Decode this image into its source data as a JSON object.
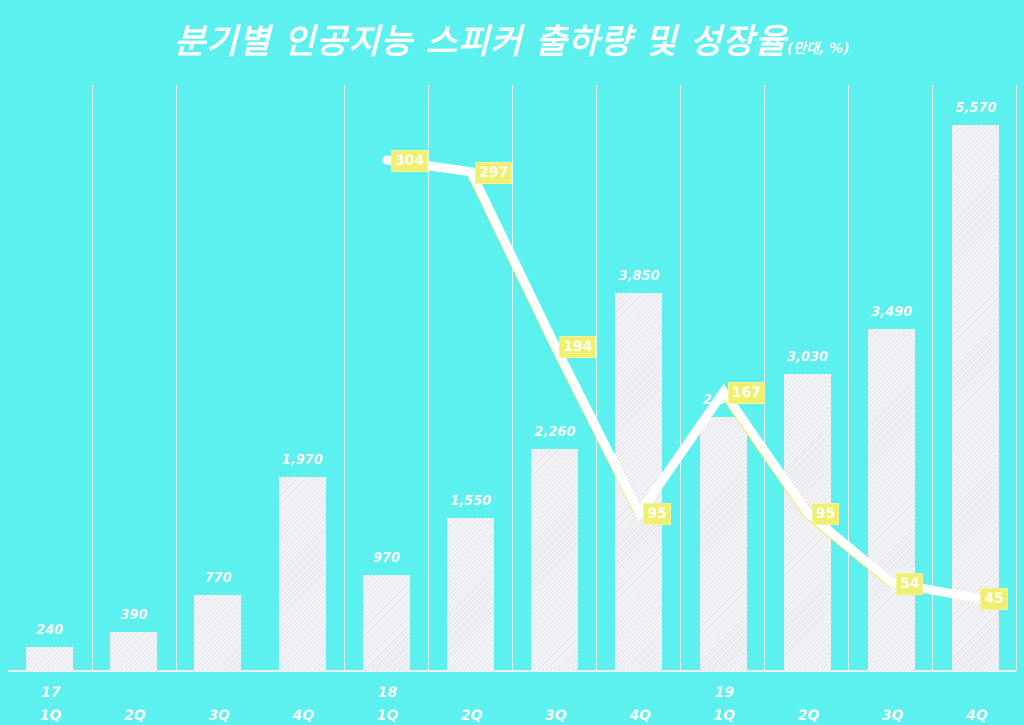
{
  "title": {
    "main": "분기별 인공지능 스피커 출하량 및 성장율",
    "unit": "(만대, %)"
  },
  "colors": {
    "background": "#5cf0ef",
    "bar": "#f0f2f5",
    "line": "#ffffff",
    "line_accent": "#f0e020",
    "rate_label_bg": "#f0ef6e",
    "text": "#ffffff"
  },
  "chart_data": {
    "type": "bar",
    "title": "분기별 인공지능 스피커 출하량 및 성장율",
    "unit": "(만대, %)",
    "xlabel": "",
    "ylabel": "",
    "categories": [
      "17 1Q",
      "2Q",
      "3Q",
      "4Q",
      "18 1Q",
      "2Q",
      "3Q",
      "4Q",
      "19 1Q",
      "2Q",
      "3Q",
      "4Q"
    ],
    "year_labels": [
      {
        "index": 0,
        "label": "17"
      },
      {
        "index": 4,
        "label": "18"
      },
      {
        "index": 8,
        "label": "19"
      }
    ],
    "quarter_labels": [
      "1Q",
      "2Q",
      "3Q",
      "4Q",
      "1Q",
      "2Q",
      "3Q",
      "4Q",
      "1Q",
      "2Q",
      "3Q",
      "4Q"
    ],
    "series": [
      {
        "name": "출하량 (만대)",
        "type": "bar",
        "values": [
          240,
          390,
          770,
          1970,
          970,
          1550,
          2260,
          3850,
          2590,
          3030,
          3490,
          5570
        ],
        "labels": [
          "240",
          "390",
          "770",
          "1,970",
          "970",
          "1,550",
          "2,260",
          "3,850",
          "2,590",
          "3,030",
          "3,490",
          "5,570"
        ]
      },
      {
        "name": "성장율 (%)",
        "type": "line",
        "values": [
          null,
          null,
          null,
          null,
          304,
          297,
          194,
          95,
          167,
          95,
          54,
          45
        ],
        "labels": [
          "",
          "",
          "",
          "",
          "304",
          "297",
          "194",
          "95",
          "167",
          "95",
          "54",
          "45"
        ]
      }
    ],
    "ylim": [
      0,
      5600
    ],
    "grid": "vertical separators",
    "legend": "none"
  }
}
